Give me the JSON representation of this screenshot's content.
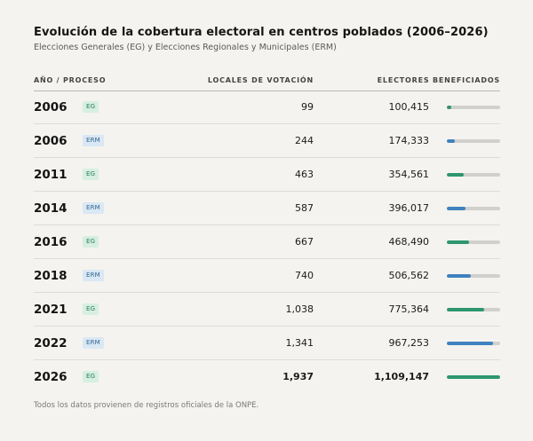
{
  "title": "Evolución de la cobertura electoral en centros poblados (2006–2026)",
  "subtitle": "Elecciones Generales (EG) y Elecciones Regionales y Municipales (ERM)",
  "headers": {
    "year": "AÑO / PROCESO",
    "locales": "LOCALES DE VOTACIÓN",
    "electores": "ELECTORES BENEFICIADOS"
  },
  "footnote": "Todos los datos provienen de registros oficiales de la ONPE.",
  "colors": {
    "EG": "#2e9670",
    "ERM": "#3f82bf",
    "track": "#d0d0cd"
  },
  "chart_data": {
    "type": "table",
    "title": "Evolución de la cobertura electoral en centros poblados (2006–2026)",
    "columns": [
      "AÑO / PROCESO",
      "LOCALES DE VOTACIÓN",
      "ELECTORES BENEFICIADOS"
    ],
    "bar_max": 1109147,
    "rows": [
      {
        "year": "2006",
        "process": "EG",
        "locales": "99",
        "electores": "100,415",
        "electores_value": 100415
      },
      {
        "year": "2006",
        "process": "ERM",
        "locales": "244",
        "electores": "174,333",
        "electores_value": 174333
      },
      {
        "year": "2011",
        "process": "EG",
        "locales": "463",
        "electores": "354,561",
        "electores_value": 354561
      },
      {
        "year": "2014",
        "process": "ERM",
        "locales": "587",
        "electores": "396,017",
        "electores_value": 396017
      },
      {
        "year": "2016",
        "process": "EG",
        "locales": "667",
        "electores": "468,490",
        "electores_value": 468490
      },
      {
        "year": "2018",
        "process": "ERM",
        "locales": "740",
        "electores": "506,562",
        "electores_value": 506562
      },
      {
        "year": "2021",
        "process": "EG",
        "locales": "1,038",
        "electores": "775,364",
        "electores_value": 775364
      },
      {
        "year": "2022",
        "process": "ERM",
        "locales": "1,341",
        "electores": "967,253",
        "electores_value": 967253
      },
      {
        "year": "2026",
        "process": "EG",
        "locales": "1,937",
        "electores": "1,109,147",
        "electores_value": 1109147,
        "emphasis": true
      }
    ]
  }
}
